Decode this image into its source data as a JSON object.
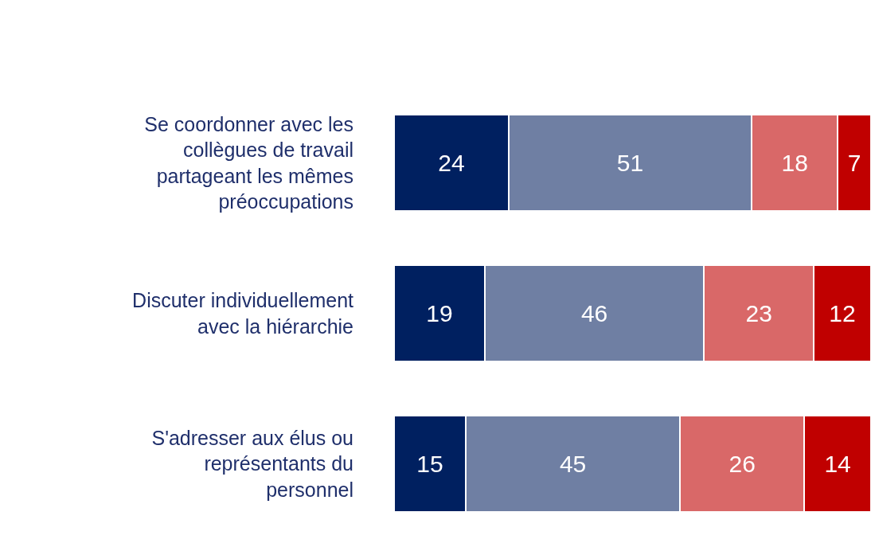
{
  "chart_data": {
    "type": "bar",
    "orientation": "horizontal",
    "stacked": true,
    "data_labels": true,
    "categories": [
      "Se coordonner avec les collègues de travail partageant les mêmes préoccupations",
      "Discuter individuellement avec la hiérarchie",
      "S'adresser aux élus ou représentants du personnel"
    ],
    "series": [
      {
        "color": "#002060",
        "values": [
          24,
          19,
          15
        ]
      },
      {
        "color": "#6f7fa3",
        "values": [
          51,
          46,
          45
        ]
      },
      {
        "color": "#d96868",
        "values": [
          18,
          23,
          26
        ]
      },
      {
        "color": "#c00000",
        "values": [
          7,
          12,
          14
        ]
      }
    ]
  }
}
